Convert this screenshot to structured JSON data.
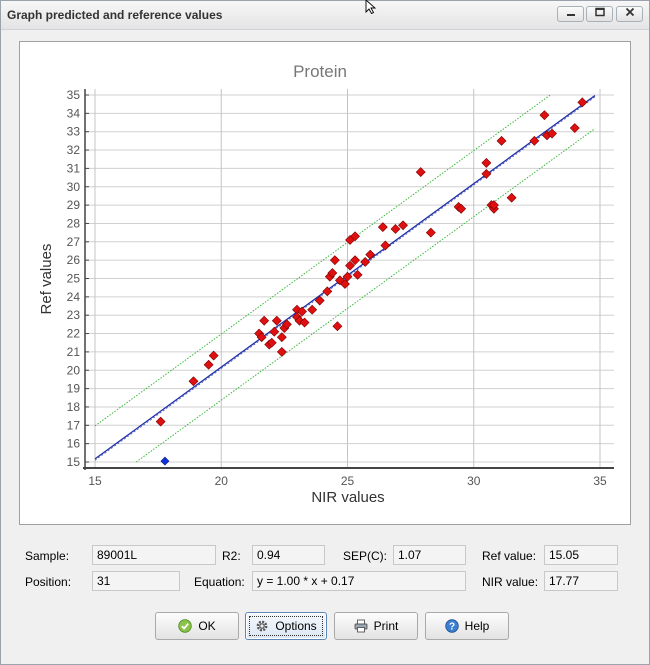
{
  "window": {
    "title": "Graph predicted and reference values",
    "controls": [
      "minimize-icon",
      "maximize-icon",
      "close-icon"
    ]
  },
  "chart_data": {
    "type": "scatter",
    "title": "Protein",
    "xlabel": "NIR values",
    "ylabel": "Ref values",
    "xlim": [
      15,
      35
    ],
    "ylim": [
      15,
      35
    ],
    "x_ticks": [
      15,
      20,
      25,
      30,
      35
    ],
    "y_ticks": [
      15,
      16,
      17,
      18,
      19,
      20,
      21,
      22,
      23,
      24,
      25,
      26,
      27,
      28,
      29,
      30,
      31,
      32,
      33,
      34,
      35
    ],
    "grid": true,
    "regression_line": {
      "slope": 1.0,
      "intercept": 0.17,
      "x_range": [
        15,
        34.8
      ],
      "color": "#1f2fa8"
    },
    "confidence_bands": {
      "offset": 1.8,
      "color": "#3cb83c",
      "style": "dotted"
    },
    "points": [
      [
        17.6,
        17.2
      ],
      [
        18.9,
        19.4
      ],
      [
        19.5,
        20.3
      ],
      [
        19.7,
        20.8
      ],
      [
        21.5,
        22.0
      ],
      [
        21.6,
        21.8
      ],
      [
        21.7,
        22.7
      ],
      [
        21.9,
        21.4
      ],
      [
        22.0,
        21.5
      ],
      [
        22.1,
        22.1
      ],
      [
        22.2,
        22.7
      ],
      [
        22.4,
        21.0
      ],
      [
        22.4,
        21.8
      ],
      [
        22.5,
        22.3
      ],
      [
        22.6,
        22.5
      ],
      [
        23.0,
        23.3
      ],
      [
        23.0,
        22.9
      ],
      [
        23.1,
        22.7
      ],
      [
        23.2,
        23.2
      ],
      [
        23.3,
        22.6
      ],
      [
        23.6,
        23.3
      ],
      [
        23.9,
        23.8
      ],
      [
        24.2,
        24.3
      ],
      [
        24.3,
        25.1
      ],
      [
        24.4,
        25.3
      ],
      [
        24.5,
        26.0
      ],
      [
        24.6,
        22.4
      ],
      [
        24.7,
        24.9
      ],
      [
        24.9,
        24.7
      ],
      [
        25.0,
        25.1
      ],
      [
        25.1,
        25.7
      ],
      [
        25.1,
        27.1
      ],
      [
        25.3,
        27.3
      ],
      [
        25.3,
        26.0
      ],
      [
        25.4,
        25.2
      ],
      [
        25.7,
        25.9
      ],
      [
        25.9,
        26.3
      ],
      [
        26.4,
        27.8
      ],
      [
        26.5,
        26.8
      ],
      [
        26.9,
        27.7
      ],
      [
        27.2,
        27.9
      ],
      [
        27.9,
        30.8
      ],
      [
        28.3,
        27.5
      ],
      [
        29.4,
        28.9
      ],
      [
        29.5,
        28.8
      ],
      [
        30.5,
        31.3
      ],
      [
        30.5,
        30.7
      ],
      [
        30.7,
        29.0
      ],
      [
        30.8,
        28.8
      ],
      [
        30.8,
        29.0
      ],
      [
        31.1,
        32.5
      ],
      [
        31.5,
        29.4
      ],
      [
        32.4,
        32.5
      ],
      [
        32.8,
        33.9
      ],
      [
        32.9,
        32.8
      ],
      [
        33.1,
        32.9
      ],
      [
        34.0,
        33.2
      ],
      [
        34.3,
        34.6
      ]
    ],
    "point_color": "#e01010",
    "highlighted_point": {
      "x": 17.77,
      "y": 15.05,
      "color": "#1030e0"
    }
  },
  "info": {
    "sample_label": "Sample:",
    "sample_value": "89001L",
    "r2_label": "R2:",
    "r2_value": "0.94",
    "sep_label": "SEP(C):",
    "sep_value": "1.07",
    "ref_label": "Ref value:",
    "ref_value": "15.05",
    "position_label": "Position:",
    "position_value": "31",
    "equation_label": "Equation:",
    "equation_value": "y = 1.00 * x + 0.17",
    "nir_label": "NIR value:",
    "nir_value": "17.77"
  },
  "buttons": {
    "ok": "OK",
    "options": "Options",
    "print": "Print",
    "help": "Help"
  }
}
